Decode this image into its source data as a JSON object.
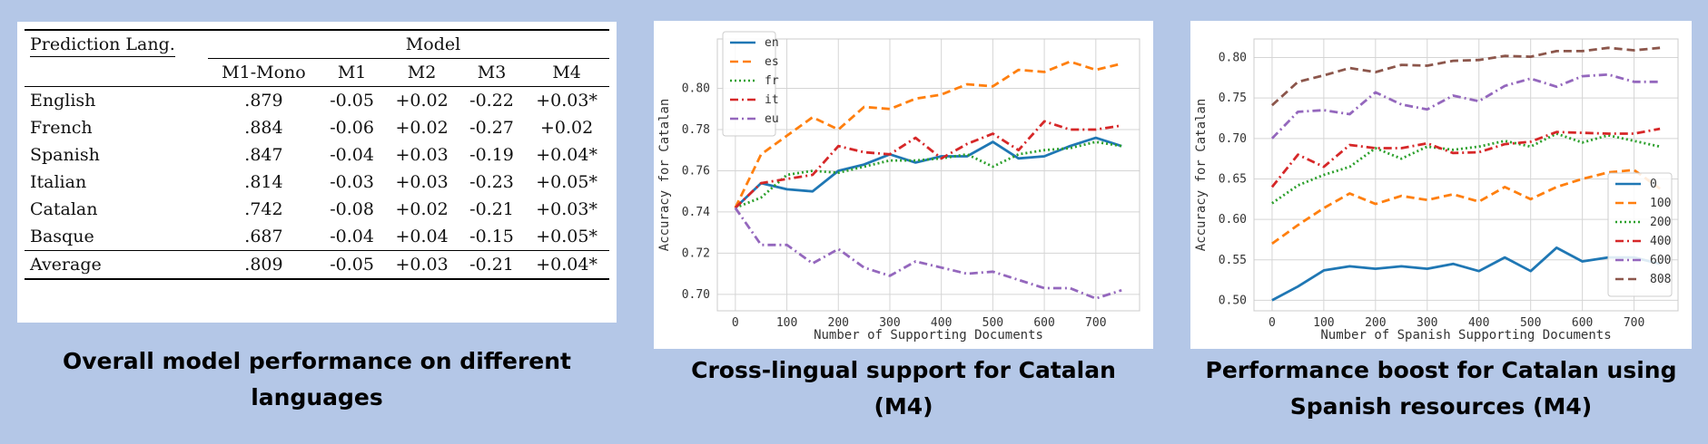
{
  "table": {
    "col_header_left": "Prediction Lang.",
    "group_header": "Model",
    "columns": [
      "M1-Mono",
      "M1",
      "M2",
      "M3",
      "M4"
    ],
    "rows": [
      {
        "lang": "English",
        "cells": [
          ".879",
          "-0.05",
          "+0.02",
          "-0.22",
          "+0.03*"
        ]
      },
      {
        "lang": "French",
        "cells": [
          ".884",
          "-0.06",
          "+0.02",
          "-0.27",
          "+0.02"
        ]
      },
      {
        "lang": "Spanish",
        "cells": [
          ".847",
          "-0.04",
          "+0.03",
          "-0.19",
          "+0.04*"
        ]
      },
      {
        "lang": "Italian",
        "cells": [
          ".814",
          "-0.03",
          "+0.03",
          "-0.23",
          "+0.05*"
        ]
      },
      {
        "lang": "Catalan",
        "cells": [
          ".742",
          "-0.08",
          "+0.02",
          "-0.21",
          "+0.03*"
        ]
      },
      {
        "lang": "Basque",
        "cells": [
          ".687",
          "-0.04",
          "+0.04",
          "-0.15",
          "+0.05*"
        ]
      }
    ],
    "average": {
      "lang": "Average",
      "cells": [
        ".809",
        "-0.05",
        "+0.03",
        "-0.21",
        "+0.04*"
      ]
    }
  },
  "captions": {
    "table_line1": "Overall model performance on different",
    "table_line2": "languages",
    "chart1_line1": "Cross-lingual support for Catalan",
    "chart1_line2": "(M4)",
    "chart2_line1": "Performance boost for Catalan using",
    "chart2_line2": "Spanish resources (M4)"
  },
  "chart_data": [
    {
      "type": "line",
      "title": "",
      "xlabel": "Number of Supporting Documents",
      "ylabel": "Accuracy for Catalan",
      "xlim": [
        -35,
        785
      ],
      "ylim": [
        0.692,
        0.824
      ],
      "xticks": [
        0,
        100,
        200,
        300,
        400,
        500,
        600,
        700
      ],
      "yticks": [
        0.7,
        0.72,
        0.74,
        0.76,
        0.78,
        0.8
      ],
      "ytick_labels": [
        "0.70",
        "0.72",
        "0.74",
        "0.76",
        "0.78",
        "0.80"
      ],
      "grid": true,
      "legend_position": "top-left",
      "x": [
        0,
        50,
        100,
        150,
        200,
        250,
        300,
        350,
        400,
        450,
        500,
        550,
        600,
        650,
        700,
        750
      ],
      "series": [
        {
          "name": "en",
          "color": "#1f77b4",
          "dash": "solid",
          "values": [
            0.742,
            0.754,
            0.751,
            0.75,
            0.76,
            0.763,
            0.768,
            0.764,
            0.767,
            0.767,
            0.774,
            0.766,
            0.767,
            0.772,
            0.776,
            0.772
          ]
        },
        {
          "name": "es",
          "color": "#ff7f0e",
          "dash": "dashed",
          "values": [
            0.742,
            0.768,
            0.777,
            0.786,
            0.78,
            0.791,
            0.79,
            0.795,
            0.797,
            0.802,
            0.801,
            0.809,
            0.808,
            0.813,
            0.809,
            0.812
          ]
        },
        {
          "name": "fr",
          "color": "#2ca02c",
          "dash": "dotted",
          "values": [
            0.742,
            0.747,
            0.758,
            0.76,
            0.759,
            0.762,
            0.765,
            0.765,
            0.766,
            0.768,
            0.762,
            0.768,
            0.77,
            0.771,
            0.774,
            0.772
          ]
        },
        {
          "name": "it",
          "color": "#d62728",
          "dash": "dashdot",
          "values": [
            0.742,
            0.754,
            0.756,
            0.758,
            0.772,
            0.769,
            0.768,
            0.776,
            0.766,
            0.773,
            0.778,
            0.77,
            0.784,
            0.78,
            0.78,
            0.782
          ]
        },
        {
          "name": "eu",
          "color": "#9467bd",
          "dash": "dashdot",
          "values": [
            0.742,
            0.724,
            0.724,
            0.715,
            0.722,
            0.713,
            0.709,
            0.716,
            0.713,
            0.71,
            0.711,
            0.707,
            0.703,
            0.703,
            0.698,
            0.702
          ]
        }
      ]
    },
    {
      "type": "line",
      "title": "",
      "xlabel": "Number of Spanish Supporting Documents",
      "ylabel": "Accuracy for Catalan",
      "xlim": [
        -35,
        785
      ],
      "ylim": [
        0.487,
        0.823
      ],
      "xticks": [
        0,
        100,
        200,
        300,
        400,
        500,
        600,
        700
      ],
      "yticks": [
        0.5,
        0.55,
        0.6,
        0.65,
        0.7,
        0.75,
        0.8
      ],
      "ytick_labels": [
        "0.50",
        "0.55",
        "0.60",
        "0.65",
        "0.70",
        "0.75",
        "0.80"
      ],
      "grid": true,
      "legend_position": "lower-right",
      "x": [
        0,
        50,
        100,
        150,
        200,
        250,
        300,
        350,
        400,
        450,
        500,
        550,
        600,
        650,
        700,
        750
      ],
      "series": [
        {
          "name": "0",
          "color": "#1f77b4",
          "dash": "solid",
          "values": [
            0.5,
            0.517,
            0.537,
            0.542,
            0.539,
            0.542,
            0.539,
            0.545,
            0.536,
            0.553,
            0.536,
            0.565,
            0.548,
            0.553,
            0.553,
            0.545
          ]
        },
        {
          "name": "100",
          "color": "#ff7f0e",
          "dash": "dashed",
          "values": [
            0.57,
            0.593,
            0.614,
            0.632,
            0.619,
            0.629,
            0.624,
            0.631,
            0.622,
            0.64,
            0.625,
            0.64,
            0.65,
            0.658,
            0.661,
            0.638
          ]
        },
        {
          "name": "200",
          "color": "#2ca02c",
          "dash": "dotted",
          "values": [
            0.62,
            0.642,
            0.655,
            0.665,
            0.688,
            0.675,
            0.69,
            0.686,
            0.69,
            0.697,
            0.69,
            0.706,
            0.695,
            0.704,
            0.697,
            0.69
          ]
        },
        {
          "name": "400",
          "color": "#d62728",
          "dash": "dashdot",
          "values": [
            0.64,
            0.68,
            0.665,
            0.692,
            0.688,
            0.688,
            0.694,
            0.682,
            0.683,
            0.693,
            0.696,
            0.708,
            0.707,
            0.706,
            0.706,
            0.712
          ]
        },
        {
          "name": "600",
          "color": "#9467bd",
          "dash": "dashdot",
          "values": [
            0.7,
            0.733,
            0.735,
            0.73,
            0.757,
            0.742,
            0.736,
            0.753,
            0.746,
            0.765,
            0.774,
            0.764,
            0.777,
            0.779,
            0.77,
            0.77
          ]
        },
        {
          "name": "808",
          "color": "#8c564b",
          "dash": "dashed",
          "values": [
            0.741,
            0.77,
            0.778,
            0.787,
            0.782,
            0.791,
            0.79,
            0.796,
            0.797,
            0.802,
            0.801,
            0.808,
            0.808,
            0.812,
            0.809,
            0.812
          ]
        }
      ]
    }
  ]
}
